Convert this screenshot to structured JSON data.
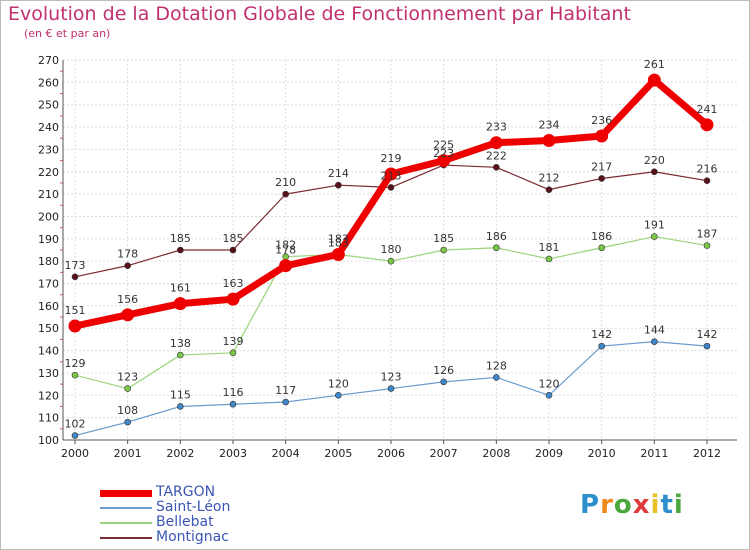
{
  "title": "Evolution de la Dotation Globale de Fonctionnement par Habitant",
  "subtitle": "(en € et par an)",
  "logo": {
    "letters": [
      "P",
      "r",
      "o",
      "x",
      "i",
      "t",
      "i"
    ],
    "colors": [
      "#2e8fce",
      "#f08a1c",
      "#4aa83c",
      "#e03a3a",
      "#e6c12a",
      "#2e8fce",
      "#4aa83c"
    ]
  },
  "chart_data": {
    "type": "line",
    "x": [
      "2000",
      "2001",
      "2002",
      "2003",
      "2004",
      "2005",
      "2006",
      "2007",
      "2008",
      "2009",
      "2010",
      "2011",
      "2012"
    ],
    "yticks": [
      100,
      110,
      120,
      130,
      140,
      150,
      160,
      170,
      180,
      190,
      200,
      210,
      220,
      230,
      240,
      250,
      260,
      270
    ],
    "ylim": [
      100,
      270
    ],
    "grid": true,
    "legend": "bottom-left",
    "series": [
      {
        "name": "Montignac",
        "color": "#7a2a32",
        "marker": "#5a1018",
        "width": 1.2,
        "r": 3,
        "values": [
          173,
          178,
          185,
          185,
          210,
          214,
          213,
          223,
          222,
          212,
          217,
          220,
          216
        ]
      },
      {
        "name": "Bellebat",
        "color": "#9ad47a",
        "marker": "#7ac84a",
        "width": 1.2,
        "r": 3,
        "values": [
          129,
          123,
          138,
          139,
          182,
          183,
          180,
          185,
          186,
          181,
          186,
          191,
          187
        ]
      },
      {
        "name": "Saint-Léon",
        "color": "#6a9ccc",
        "marker": "#3f87c8",
        "width": 1.2,
        "r": 3,
        "values": [
          102,
          108,
          115,
          116,
          117,
          120,
          123,
          126,
          128,
          120,
          142,
          144,
          142
        ]
      },
      {
        "name": "TARGON",
        "color": "#ee0000",
        "marker": "#ee0000",
        "width": 7,
        "r": 6.5,
        "values": [
          151,
          156,
          161,
          163,
          178,
          183,
          219,
          225,
          233,
          234,
          236,
          261,
          241
        ]
      }
    ],
    "legend_order": [
      "TARGON",
      "Saint-Léon",
      "Bellebat",
      "Montignac"
    ]
  }
}
